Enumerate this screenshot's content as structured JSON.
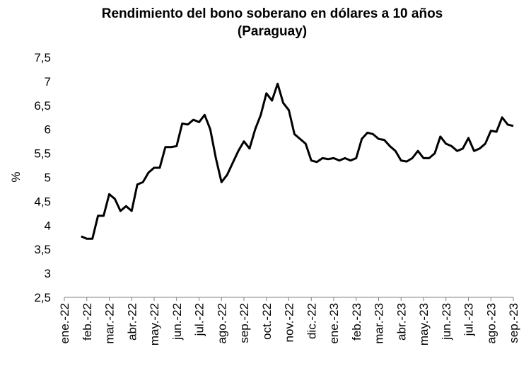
{
  "chart_data": {
    "type": "line",
    "title": "Rendimiento del bono soberano en dólares a 10 años",
    "subtitle": "(Paraguay)",
    "y_label": "%",
    "categories": [
      "ene.-22",
      null,
      null,
      null,
      "feb.-22",
      null,
      null,
      null,
      "mar.-22",
      null,
      null,
      null,
      "abr.-22",
      null,
      null,
      null,
      "may.-22",
      null,
      null,
      null,
      "jun.-22",
      null,
      null,
      null,
      "jul.-22",
      null,
      null,
      null,
      "ago.-22",
      null,
      null,
      null,
      "sep.-22",
      null,
      null,
      null,
      "oct.-22",
      null,
      null,
      null,
      "nov.-22",
      null,
      null,
      null,
      "dic.-22",
      null,
      null,
      null,
      "ene.-23",
      null,
      null,
      null,
      "feb.-23",
      null,
      null,
      null,
      "mar.-23",
      null,
      null,
      null,
      "abr.-23",
      null,
      null,
      null,
      "may.-23",
      null,
      null,
      null,
      "jun.-23",
      null,
      null,
      null,
      "jul.-23",
      null,
      null,
      null,
      "ago.-23",
      null,
      null,
      null,
      "sep.-23"
    ],
    "series": [
      {
        "name": "Rendimiento",
        "color": "#000000",
        "values": [
          null,
          null,
          null,
          3.77,
          3.72,
          3.72,
          4.2,
          4.2,
          4.65,
          4.55,
          4.3,
          4.4,
          4.3,
          4.85,
          4.9,
          5.1,
          5.2,
          5.2,
          5.63,
          5.63,
          5.65,
          6.12,
          6.1,
          6.2,
          6.15,
          6.3,
          6.0,
          5.4,
          4.9,
          5.05,
          5.3,
          5.55,
          5.75,
          5.6,
          6.0,
          6.3,
          6.75,
          6.6,
          6.95,
          6.55,
          6.4,
          5.9,
          5.8,
          5.7,
          5.35,
          5.32,
          5.4,
          5.38,
          5.4,
          5.35,
          5.4,
          5.35,
          5.4,
          5.8,
          5.93,
          5.9,
          5.8,
          5.78,
          5.65,
          5.55,
          5.35,
          5.33,
          5.4,
          5.55,
          5.4,
          5.4,
          5.5,
          5.85,
          5.7,
          5.65,
          5.55,
          5.6,
          5.82,
          5.55,
          5.6,
          5.7,
          5.97,
          5.95,
          6.25,
          6.1,
          6.07
        ]
      }
    ],
    "ylim": [
      2.5,
      7.5
    ],
    "yticks": [
      {
        "value": 2.5,
        "label": "2,5"
      },
      3,
      {
        "value": 3.5,
        "label": "3,5"
      },
      4,
      {
        "value": 4.5,
        "label": "4,5"
      },
      5,
      {
        "value": 5.5,
        "label": "5,5"
      },
      6,
      {
        "value": 6.5,
        "label": "6,5"
      },
      7,
      {
        "value": 7.5,
        "label": "7,5"
      }
    ],
    "grid": false
  }
}
